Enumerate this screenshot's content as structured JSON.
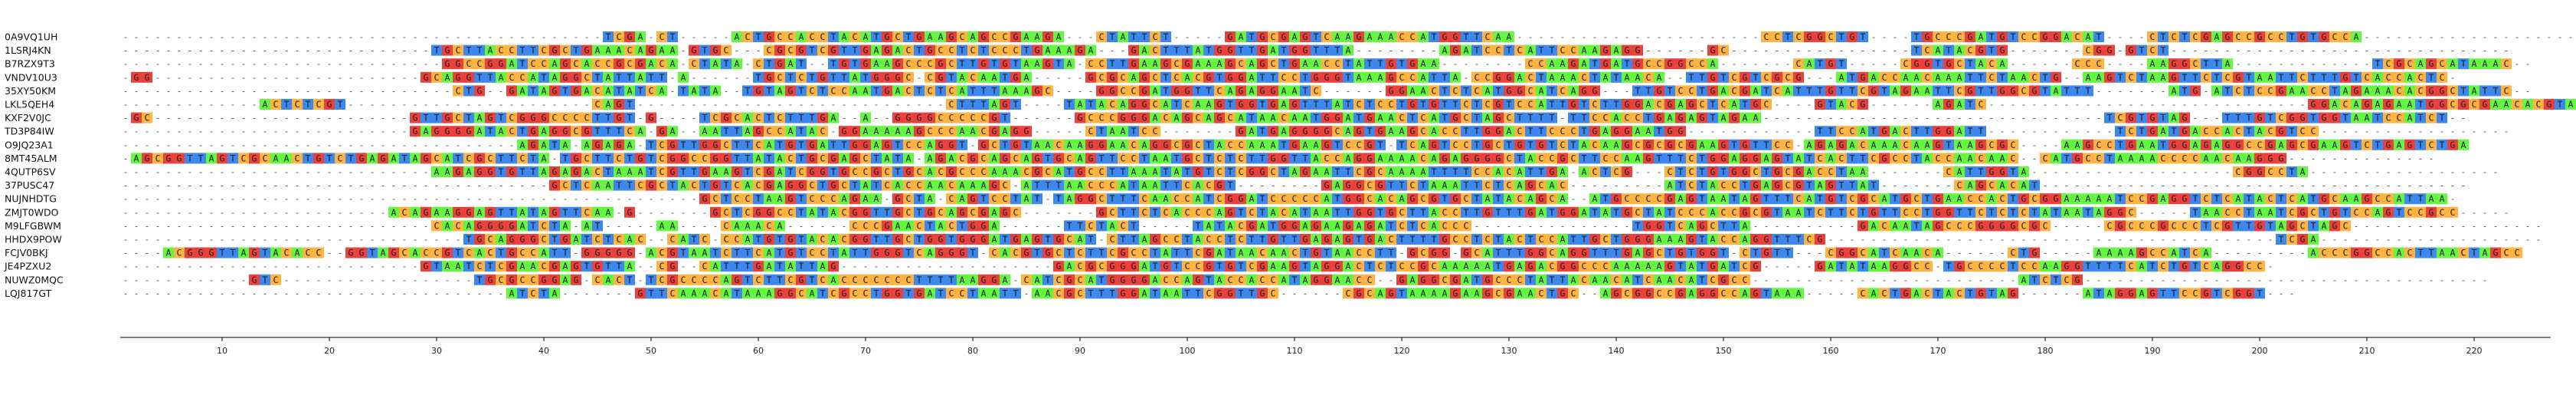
{
  "alignment": {
    "sequences": [
      {
        "name": "0A9VQ1UH",
        "seq": "---------------------------------------------TCGA-CT-----ACTGCCACCTACATGCTGAAGCAGCCGAAGA---CTATTCT-----GATGCGAGTCAAGAAACCATGGTTCAA-----------------------CCTCGGCTGT----TGCCCGATGTCCGGACAT----CTCTCGAGCCGCCTGTGCCA-----------------------"
      },
      {
        "name": "1LSRJ4KN",
        "seq": "-----------------------------TGCTTACCTTCGCTGAAACAGAA-GTGC---CGCGTCGTTGAGACTGCCTCTCCCTGAAAGA---GACTTTATGGTTGATGGTTTA--------AGATCCTCATTCCAAGAGG------GC-----------------TCATACGTG-------CGG-GTCT--------------------------------"
      },
      {
        "name": "B7RZX9T3",
        "seq": "------------------------------GGCCGGATCCAGCACCGCGACA-CTATA-CTGAT--TGTGAAGCCCGCTTGTGTAAGTA-CCTTGAAGCGAAAGCAGCTGAACCTATTGTGAA--------CCAAGATGATGCCGGCCA-------CATGT-----CGGTGCTACA------CCC----AAGGCTTA-------------TCGCAGCATAAAC--"
      },
      {
        "name": "VNDV10U3",
        "seq": "-GG-------------------------GCAGGTTACCATAGGCTATTATT-A------TGCTCTGTTATGGGC-CGTACAATGA-----GCGCAGCTCACGTGGATTCCTGGGTAAAGCCATTA-CCGGACTAAACTATAACA--TTGTCGTCGCG---ATGACCAACAAATTCTAACTG--AAGTCTAAGTTCTCGTAATTCTTTGTCACCACTC-"
      },
      {
        "name": "35XY50KM",
        "seq": "-------------------------------CTG--GATAGTGACATATCA-TATA--TGTAGTCTCCAATGACTCTCATTTAAAGC----GGCCGATGGTTCAGAGGAATC------GGAACTCTCATGGCATCAGG---TTGTCCTGACGATCATTTGTTCGTAGAATTCGTTGGCGTATTT-------ATG-ATCTCCGAACCTAGAAACACGGCTATTC--"
      },
      {
        "name": "LKL5QEH4",
        "seq": "-------------ACTCTCGT-----------------------CAGT-----------------------------CTTTAGT----TATACAGGCATCAAGTGGTGAGTTTATCTCCTGTGTTCTCGTCCATTGTCTTGGACGAGCTCATGC----GTACG------AGATC------------------------------GGACAGAGAATGGCGCGAACACGTAACCAGT-"
      },
      {
        "name": "KXF2V0JC",
        "seq": "-GC------------------------GTTGCTAGTCGGGCCCCTTGT-G----TCGCACTCTTTGA--A--GGGGCCCCCGT------GCCCGGGACAGCAGCATAACAATGGATGAACTCATGCTAGCTTTT-TTCCACCTGAGAGTAGAA--------------------------------TCGTGTAG---TTTGTCGGTGGTAATCCATCT--"
      },
      {
        "name": "TD3P84IW",
        "seq": "---------------------------GAGGGGATACTGAGGCGTTTCA-GA--AATTAGCCATAC-GGAAAAAGCCCAACGAGG-----CTAATCC-------GATGAGGGGCAGTGAAGCACCTTGGACTTCCCTGAGGAATGG------------TTCCATGACTTGGATT------------TCTGATGACCACTACGTCC------------------"
      },
      {
        "name": "O9JQ23A1",
        "seq": "-------------------------------------AGATA-AGAGA-TCGTTGGCTTCATGTGATTGGAGTCCAGGT-GCTGTAACAAGGAACAGGCGCTACCAAATGAAGTCCGT-TCAGTCCTGCTGTGTCTACAAGCGCGCGAAGTGTTCC-AGAGACAAACAAGTAAGCGC----AAGCCTGAATGGAGAGGCCGAGCGAAGTCTGAGTCTGA"
      },
      {
        "name": "8MT45ALM",
        "seq": "-AGCGGTTAGTCGCAACTGTCTGAGATAGCATCGCTTCTA-TGCTTCTGTCGGCCGGTTATACTGCGAGCTATA-AGACGCAGCAGTGCAGTTCCTAATGCTCTCTTGGTTACCAGGAAAACAGAGGGGCTACCGCTTCCAAGTTTCTGGAGGAGTATCACTTCGCCTACCAACAAC--CATGCCTAAAACCCCAACAAGGG--------------"
      },
      {
        "name": "4QUTP6SV",
        "seq": "-----------------------------AAGAGGTGTTAGAGACTAAATCGTTGAAGTCGATCGGTGCCGCTGCACGCCCAAACGCATGCCTTAAATATGTCTCGGCTAGAATTCGCAAAATTTTCCACATTGA-ACTCG---CTCTGTGGCTGCGACCTAA-------CATTGGTA-------------------CGGCCTA------------------"
      },
      {
        "name": "37PUSC47",
        "seq": "----------------------------------------GCTCAATTCGCTACTGTCACGAGGCTGCTATCACCAACAAAGC-ATTTAACCCATAATTCACGT--------GAGGCGTTCTAAATTCTCAGCAC---------ATCTACCTGAGCGTAGTTAT-------CAGCACAT----------------------------------------"
      },
      {
        "name": "NUJNHDTG",
        "seq": "------------------------------------------------------GCTCCTAAGTCCCAGAA-GCTA-CAGTCCTAT-TAGGCTTTCAACCATCGGATCCCCCATGGCACAGCGTGCTATACAGCA--ATGCCCCGAGTAATAGTTTCATGTCGCATGCTGAACCACTGCGGAAAAATCCGAGGTCTCATACTCATGCAAGCCATTAA-"
      },
      {
        "name": "ZMJT0WDO",
        "seq": "-------------------------ACAGAAGGAGTTATAGTTCAA-G-------GCTCGGCCTATACGGTTGCTGCAGCGAGC-------GCTTCTCACCCAGTCTACATAATTGGTGCTTACCTTGTTTGATGGATATGCTATCCCACCGCGTAATCTTCTGTTCCTGGTTCTCTCTATAATAGGC-----TAACCTAATCGCTGTCCAGTCCGCC-----"
      },
      {
        "name": "M9LFGBWM",
        "seq": "-----------------------------CACAGGGGATCTA-AT-----AA----CAAACA------CCCGAACTACTGGA------TTCTACT-----TATACGATGGAGAAGAGATCTCACCC---------------TGGTCAGCTTA----------GACAATAGCCCGGGGCGC-----CGCCCGCCCTCGTTGTAGCTAGC------------------"
      },
      {
        "name": "HHDX9POW",
        "seq": "--------------------------------TGCAGGGCTGATCTCAC--CATC-CCATGTGTACACGGTTGCTGGTGGGATGAGTGCAT-CTTAGCCTACCTCTTGTTGAGAGTGACTTTTGCCTCTACTCCATTGCTGGGAAAGTACCAGGTTTCG------------------------------------------TCGA---------------------"
      },
      {
        "name": "FCJV0BKJ",
        "seq": "----ACGGGTTAGTACACC--GGTAGCACCGTCACTGCCATT-GGGGG-ACGTAATCTTCATGTCCTATTGGGTCAGGGT-CACGTGCTCTTCGCCTATTCGATAACAACTGTAACCTT-GCGG-GCATTTGGCAGGTTTGAGCTGTGGT-CTGTT---CGGCATCAACA------CTG-----AAAAGCCATCA---------ACCCGGCCACTTAACTAGCC"
      },
      {
        "name": "JE4PZXU2",
        "seq": "----------------------------GTAATCTCGAACGAGTGTTA--CG--CATTTGATATTAG--------------------GACGCGGGATGTCCGTGTCGAAGTAGGACTCTCCGCAAAAATGAGACGGCCCAAAAAGTATGATCG-----GATATAAGGCC-TGCCCCTCCAAGGTTTTCATCTGTCAGGCC-"
      },
      {
        "name": "NUWZ0MQC",
        "seq": "------------GTC------------------TGCGCCGGAG-CACT-TCGCCCCAGTCTTCGTCACCCCCCCTTTTAAGGA-CATCGCATGGGGACCAGTACCACCATAGGAACC--GAGGCGATGCCCTATTACAACATCAACATCGCC-------------------------ATCTCG--------------------------------------"
      },
      {
        "name": "LQJ817GT",
        "seq": "------------------------------------ATCTA-------GTTCAAACATAAAGGCATCGCCTGGTGATCCTAATT-AACGCTTTGGATAATTCGGTTGC------CGCAGTAAAAGAAGCGAACTGC--AGCGGCCGAGGCCAGTAAA-----CACTGACTACTGTAG------ATAGGAGTTCCGTCGGT---"
      }
    ],
    "ruler_labels": [
      "10",
      "20",
      "30",
      "40",
      "50",
      "60",
      "70",
      "80",
      "90",
      "100",
      "110",
      "120",
      "130",
      "140",
      "150",
      "160",
      "170",
      "180",
      "190",
      "200",
      "210",
      "220"
    ],
    "colors": {
      "A": "#64f73f",
      "C": "#ffb340",
      "G": "#eb413c",
      "T": "#3c88ee"
    }
  }
}
